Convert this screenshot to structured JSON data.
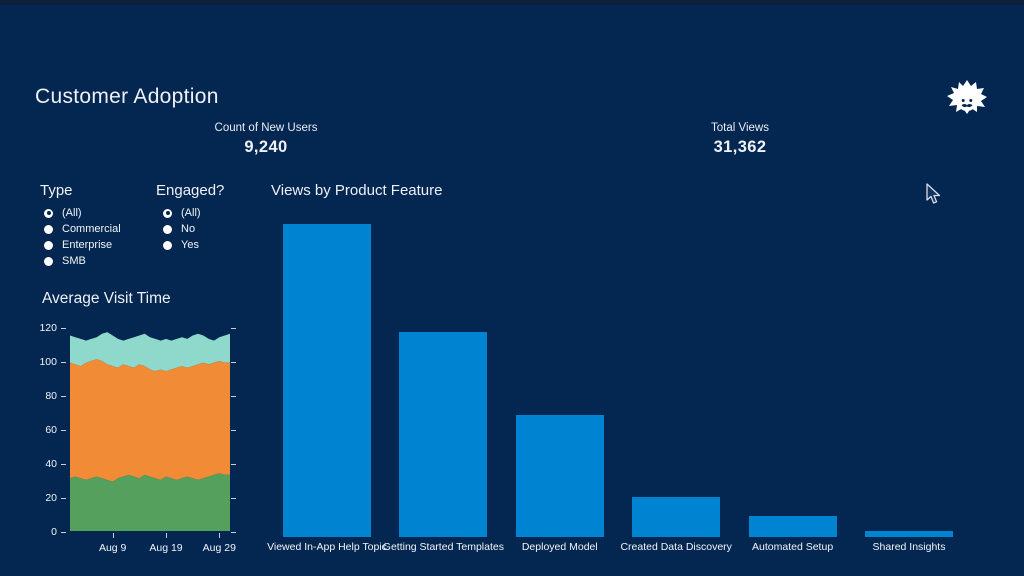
{
  "page_title": "Customer Adoption",
  "kpis": [
    {
      "label": "Count of New Users",
      "value": "9,240"
    },
    {
      "label": "Total Views",
      "value": "31,362"
    }
  ],
  "filters": {
    "type": {
      "title": "Type",
      "options": [
        {
          "label": "(All)",
          "selected": true
        },
        {
          "label": "Commercial",
          "selected": false
        },
        {
          "label": "Enterprise",
          "selected": false
        },
        {
          "label": "SMB",
          "selected": false
        }
      ]
    },
    "engaged": {
      "title": "Engaged?",
      "options": [
        {
          "label": "(All)",
          "selected": true
        },
        {
          "label": "No",
          "selected": false
        },
        {
          "label": "Yes",
          "selected": false
        }
      ]
    }
  },
  "icons": {
    "logo": "einstein-mascot-icon",
    "cursor": "arrow-cursor"
  },
  "colors": {
    "background": "#032750",
    "top_band": "#0c203c",
    "bar_blue": "#0084d1",
    "area_green": "#56a05e",
    "area_orange": "#f28b35",
    "area_teal": "#8fd8cc",
    "text": "#eef1f7"
  },
  "chart_data": [
    {
      "id": "views-by-product-feature",
      "type": "bar",
      "title": "Views by Product Feature",
      "categories": [
        "Viewed In-App Help Topic",
        "Getting Started Templates",
        "Deployed Model",
        "Created Data Discovery",
        "Automated Setup",
        "Shared Insights"
      ],
      "values": [
        13885,
        9095,
        5410,
        1775,
        930,
        267
      ],
      "values_note": "estimated from bar heights; bars sum to Total Views 31,362",
      "ylim": [
        0,
        14000
      ],
      "bar_color": "#0084d1",
      "axis_labels_shown": false
    },
    {
      "id": "average-visit-time",
      "type": "area",
      "stacked": true,
      "title": "Average Visit Time",
      "y_ticks": [
        0,
        20,
        40,
        60,
        80,
        100,
        120
      ],
      "ylim": [
        0,
        120
      ],
      "x_ticks": [
        {
          "day": 9,
          "label": "Aug 9"
        },
        {
          "day": 19,
          "label": "Aug 19"
        },
        {
          "day": 29,
          "label": "Aug 29"
        }
      ],
      "x_domain_days": [
        1,
        31
      ],
      "series_values_are": "cumulative stacked top per day, Aug 1 - Aug 31",
      "series": [
        {
          "name": "layer-1-bottom",
          "color": "#56a05e",
          "tops": [
            31,
            32,
            31,
            30,
            31,
            32,
            31,
            30,
            29,
            31,
            32,
            33,
            32,
            31,
            33,
            32,
            31,
            30,
            32,
            31,
            30,
            31,
            32,
            31,
            30,
            31,
            32,
            33,
            34,
            33,
            33
          ]
        },
        {
          "name": "layer-2-middle",
          "color": "#f28b35",
          "tops": [
            99,
            98,
            97,
            99,
            100,
            101,
            100,
            98,
            97,
            96,
            98,
            97,
            96,
            98,
            97,
            95,
            94,
            95,
            94,
            95,
            96,
            97,
            96,
            97,
            98,
            99,
            98,
            99,
            100,
            99,
            99
          ]
        },
        {
          "name": "layer-3-top",
          "color": "#8fd8cc",
          "tops": [
            115,
            114,
            113,
            112,
            113,
            114,
            116,
            117,
            115,
            113,
            112,
            113,
            114,
            115,
            116,
            114,
            113,
            112,
            113,
            112,
            113,
            114,
            113,
            115,
            116,
            115,
            113,
            112,
            114,
            115,
            116
          ]
        }
      ],
      "legend_shown": false,
      "grid_shown": false
    }
  ]
}
